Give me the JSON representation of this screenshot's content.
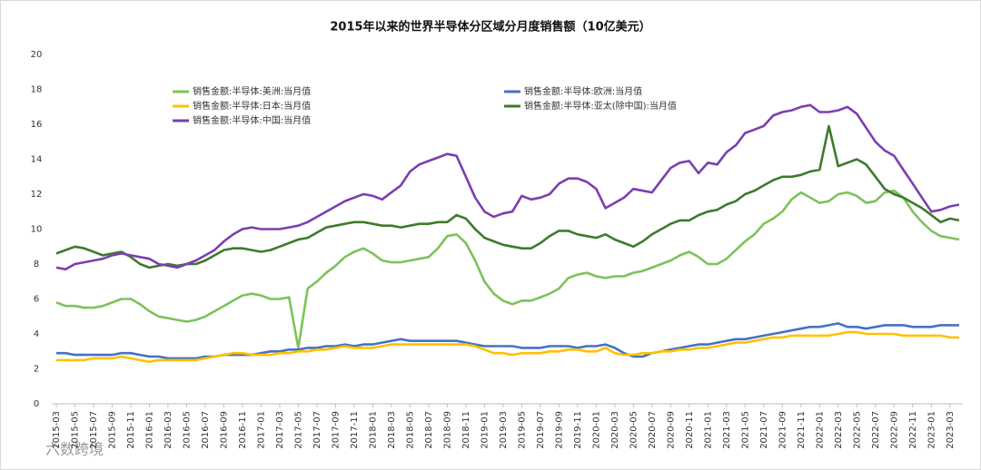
{
  "chart_data": {
    "type": "line",
    "title": "2015年以来的世界半导体分区域分月度销售额（10亿美元）",
    "watermark": "六数跨境",
    "categories": [
      "2015-03",
      null,
      "2015-05",
      null,
      "2015-07",
      null,
      "2015-09",
      null,
      "2015-11",
      null,
      "2016-01",
      null,
      "2016-03",
      null,
      "2016-05",
      null,
      "2016-07",
      null,
      "2016-09",
      null,
      "2016-11",
      null,
      "2017-01",
      null,
      "2017-03",
      null,
      "2017-05",
      null,
      "2017-07",
      null,
      "2017-09",
      null,
      "2017-11",
      null,
      "2018-01",
      null,
      "2018-03",
      null,
      "2018-05",
      null,
      "2018-07",
      null,
      "2018-09",
      null,
      "2018-11",
      null,
      "2019-01",
      null,
      "2019-03",
      null,
      "2019-05",
      null,
      "2019-07",
      null,
      "2019-09",
      null,
      "2019-11",
      null,
      "2020-01",
      null,
      "2020-03",
      null,
      "2020-05",
      null,
      "2020-07",
      null,
      "2020-09",
      null,
      "2020-11",
      null,
      "2021-01",
      null,
      "2021-03",
      null,
      "2021-05",
      null,
      "2021-07",
      null,
      "2021-09",
      null,
      "2021-11",
      null,
      "2022-01",
      null,
      "2022-03",
      null,
      "2022-05",
      null,
      "2022-07",
      null,
      "2022-09",
      null,
      "2022-11",
      null,
      "2023-01",
      null,
      "2023-03",
      null
    ],
    "ylim": [
      0,
      20
    ],
    "yticks": [
      0,
      2,
      4,
      6,
      8,
      10,
      12,
      14,
      16,
      18,
      20
    ],
    "grid": false,
    "series": [
      {
        "name": "销售金额:半导体:美洲:当月值",
        "color": "#7cc35a",
        "values": [
          5.8,
          5.6,
          5.6,
          5.5,
          5.5,
          5.6,
          5.8,
          6.0,
          6.0,
          5.7,
          5.3,
          5.0,
          4.9,
          4.8,
          4.7,
          4.8,
          5.0,
          5.3,
          5.6,
          5.9,
          6.2,
          6.3,
          6.2,
          6.0,
          6.0,
          6.1,
          3.2,
          6.6,
          7.0,
          7.5,
          7.9,
          8.4,
          8.7,
          8.9,
          8.6,
          8.2,
          8.1,
          8.1,
          8.2,
          8.3,
          8.4,
          8.9,
          9.6,
          9.7,
          9.2,
          8.2,
          7.0,
          6.3,
          5.9,
          5.7,
          5.9,
          5.9,
          6.1,
          6.3,
          6.6,
          7.2,
          7.4,
          7.5,
          7.3,
          7.2,
          7.3,
          7.3,
          7.5,
          7.6,
          7.8,
          8.0,
          8.2,
          8.5,
          8.7,
          8.4,
          8.0,
          8.0,
          8.3,
          8.8,
          9.3,
          9.7,
          10.3,
          10.6,
          11.0,
          11.7,
          12.1,
          11.8,
          11.5,
          11.6,
          12.0,
          12.1,
          11.9,
          11.5,
          11.6,
          12.1,
          12.2,
          11.8,
          11.0,
          10.4,
          9.9,
          9.6,
          9.5,
          9.4
        ]
      },
      {
        "name": "销售金额:半导体:欧洲:当月值",
        "color": "#4472c4",
        "values": [
          2.9,
          2.9,
          2.8,
          2.8,
          2.8,
          2.8,
          2.8,
          2.9,
          2.9,
          2.8,
          2.7,
          2.7,
          2.6,
          2.6,
          2.6,
          2.6,
          2.7,
          2.7,
          2.8,
          2.8,
          2.8,
          2.8,
          2.9,
          3.0,
          3.0,
          3.1,
          3.1,
          3.2,
          3.2,
          3.3,
          3.3,
          3.4,
          3.3,
          3.4,
          3.4,
          3.5,
          3.6,
          3.7,
          3.6,
          3.6,
          3.6,
          3.6,
          3.6,
          3.6,
          3.5,
          3.4,
          3.3,
          3.3,
          3.3,
          3.3,
          3.2,
          3.2,
          3.2,
          3.3,
          3.3,
          3.3,
          3.2,
          3.3,
          3.3,
          3.4,
          3.2,
          2.9,
          2.7,
          2.7,
          2.9,
          3.0,
          3.1,
          3.2,
          3.3,
          3.4,
          3.4,
          3.5,
          3.6,
          3.7,
          3.7,
          3.8,
          3.9,
          4.0,
          4.1,
          4.2,
          4.3,
          4.4,
          4.4,
          4.5,
          4.6,
          4.4,
          4.4,
          4.3,
          4.4,
          4.5,
          4.5,
          4.5,
          4.4,
          4.4,
          4.4,
          4.5,
          4.5,
          4.5
        ]
      },
      {
        "name": "销售金额:半导体:日本:当月值",
        "color": "#ffc000",
        "values": [
          2.5,
          2.5,
          2.5,
          2.5,
          2.6,
          2.6,
          2.6,
          2.7,
          2.6,
          2.5,
          2.4,
          2.5,
          2.5,
          2.5,
          2.5,
          2.5,
          2.6,
          2.7,
          2.8,
          2.9,
          2.9,
          2.8,
          2.8,
          2.8,
          2.9,
          2.9,
          3.0,
          3.0,
          3.1,
          3.1,
          3.2,
          3.3,
          3.2,
          3.2,
          3.2,
          3.3,
          3.4,
          3.4,
          3.4,
          3.4,
          3.4,
          3.4,
          3.4,
          3.4,
          3.4,
          3.3,
          3.1,
          2.9,
          2.9,
          2.8,
          2.9,
          2.9,
          2.9,
          3.0,
          3.0,
          3.1,
          3.1,
          3.0,
          3.0,
          3.2,
          2.9,
          2.8,
          2.8,
          2.9,
          2.9,
          3.0,
          3.0,
          3.1,
          3.1,
          3.2,
          3.2,
          3.3,
          3.4,
          3.5,
          3.5,
          3.6,
          3.7,
          3.8,
          3.8,
          3.9,
          3.9,
          3.9,
          3.9,
          3.9,
          4.0,
          4.1,
          4.1,
          4.0,
          4.0,
          4.0,
          4.0,
          3.9,
          3.9,
          3.9,
          3.9,
          3.9,
          3.8,
          3.8
        ]
      },
      {
        "name": "销售金额:半导体:亚太(除中国):当月值",
        "color": "#3f7a2c",
        "values": [
          8.6,
          8.8,
          9.0,
          8.9,
          8.7,
          8.5,
          8.6,
          8.7,
          8.4,
          8.0,
          7.8,
          7.9,
          8.0,
          7.9,
          8.0,
          8.0,
          8.2,
          8.5,
          8.8,
          8.9,
          8.9,
          8.8,
          8.7,
          8.8,
          9.0,
          9.2,
          9.4,
          9.5,
          9.8,
          10.1,
          10.2,
          10.3,
          10.4,
          10.4,
          10.3,
          10.2,
          10.2,
          10.1,
          10.2,
          10.3,
          10.3,
          10.4,
          10.4,
          10.8,
          10.6,
          10.0,
          9.5,
          9.3,
          9.1,
          9.0,
          8.9,
          8.9,
          9.2,
          9.6,
          9.9,
          9.9,
          9.7,
          9.6,
          9.5,
          9.7,
          9.4,
          9.2,
          9.0,
          9.3,
          9.7,
          10.0,
          10.3,
          10.5,
          10.5,
          10.8,
          11.0,
          11.1,
          11.4,
          11.6,
          12.0,
          12.2,
          12.5,
          12.8,
          13.0,
          13.0,
          13.1,
          13.3,
          13.4,
          15.9,
          13.6,
          13.8,
          14.0,
          13.7,
          13.0,
          12.3,
          12.0,
          11.8,
          11.5,
          11.2,
          10.8,
          10.4,
          10.6,
          10.5
        ]
      },
      {
        "name": "销售金额:半导体:中国:当月值",
        "color": "#7b3fb0",
        "values": [
          7.8,
          7.7,
          8.0,
          8.1,
          8.2,
          8.3,
          8.5,
          8.6,
          8.5,
          8.4,
          8.3,
          8.0,
          7.9,
          7.8,
          8.0,
          8.2,
          8.5,
          8.8,
          9.3,
          9.7,
          10.0,
          10.1,
          10.0,
          10.0,
          10.0,
          10.1,
          10.2,
          10.4,
          10.7,
          11.0,
          11.3,
          11.6,
          11.8,
          12.0,
          11.9,
          11.7,
          12.1,
          12.5,
          13.3,
          13.7,
          13.9,
          14.1,
          14.3,
          14.2,
          13.0,
          11.8,
          11.0,
          10.7,
          10.9,
          11.0,
          11.9,
          11.7,
          11.8,
          12.0,
          12.6,
          12.9,
          12.9,
          12.7,
          12.3,
          11.2,
          11.5,
          11.8,
          12.3,
          12.2,
          12.1,
          12.8,
          13.5,
          13.8,
          13.9,
          13.2,
          13.8,
          13.7,
          14.4,
          14.8,
          15.5,
          15.7,
          15.9,
          16.5,
          16.7,
          16.8,
          17.0,
          17.1,
          16.7,
          16.7,
          16.8,
          17.0,
          16.6,
          15.8,
          15.0,
          14.5,
          14.2,
          13.4,
          12.6,
          11.8,
          11.0,
          11.1,
          11.3,
          11.4
        ]
      }
    ]
  }
}
